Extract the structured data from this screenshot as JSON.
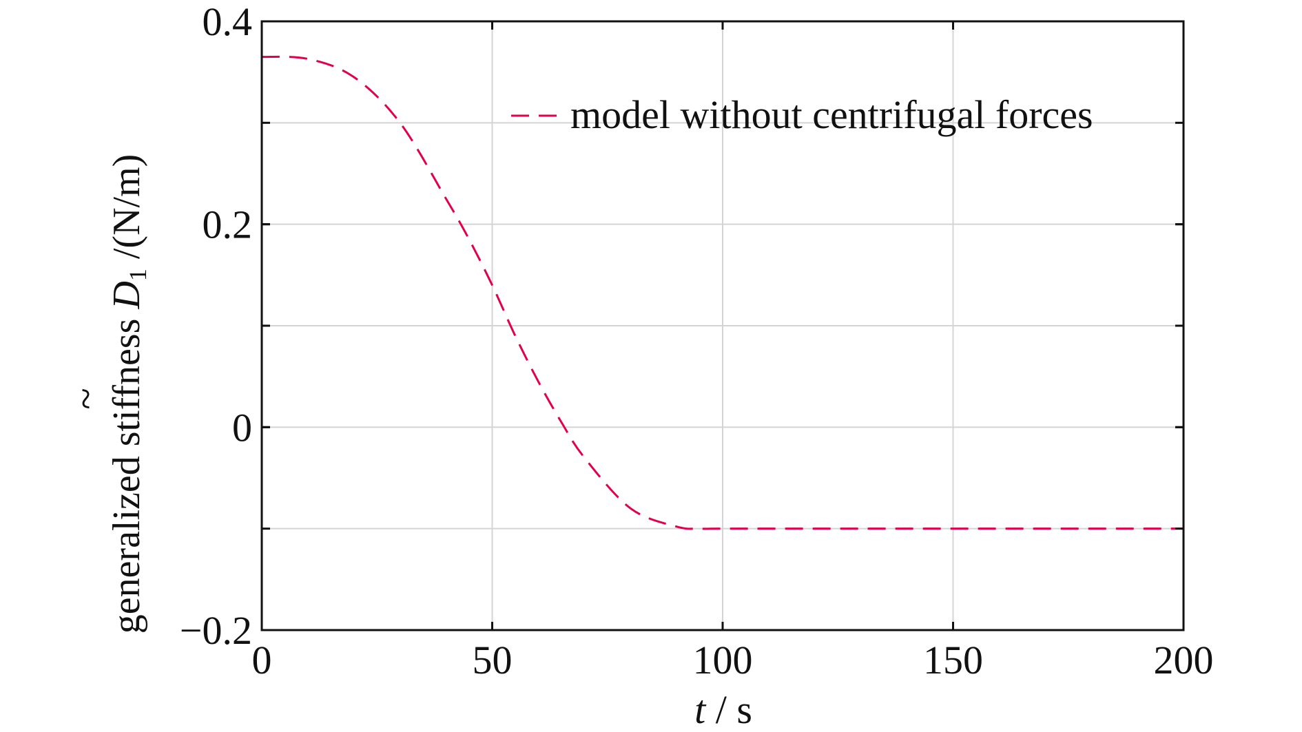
{
  "chart_data": {
    "type": "line",
    "title": "",
    "xlabel": {
      "var": "t",
      "unit": " / s"
    },
    "ylabel": {
      "prefix": "generalized stiffness ",
      "tilde": "~",
      "var": "D",
      "sub": "1",
      "unit": " /(N/m)"
    },
    "xlim": [
      0,
      200
    ],
    "ylim": [
      -0.2,
      0.4
    ],
    "xticks": [
      0,
      50,
      100,
      150,
      200
    ],
    "xtick_labels": [
      "0",
      "50",
      "100",
      "150",
      "200"
    ],
    "yticks": [
      -0.2,
      0,
      0.2,
      0.4
    ],
    "ytick_labels": [
      "−0.2",
      "0",
      "0.2",
      "0.4"
    ],
    "grid_x": [
      50,
      100,
      150
    ],
    "grid_y": [
      -0.1,
      0,
      0.1,
      0.2,
      0.3
    ],
    "grid": true,
    "legend_position": "top-right",
    "series": [
      {
        "name": "model without centrifugal forces",
        "color": "#e0004d",
        "style": "dashed",
        "x": [
          0,
          10,
          20,
          30,
          40,
          45,
          50,
          55,
          60,
          65,
          70,
          80,
          90,
          95,
          100,
          120,
          150,
          200
        ],
        "y": [
          0.365,
          0.363,
          0.345,
          0.3,
          0.225,
          0.185,
          0.14,
          0.09,
          0.045,
          0.005,
          -0.03,
          -0.08,
          -0.098,
          -0.1,
          -0.1,
          -0.1,
          -0.1,
          -0.1
        ]
      }
    ]
  }
}
